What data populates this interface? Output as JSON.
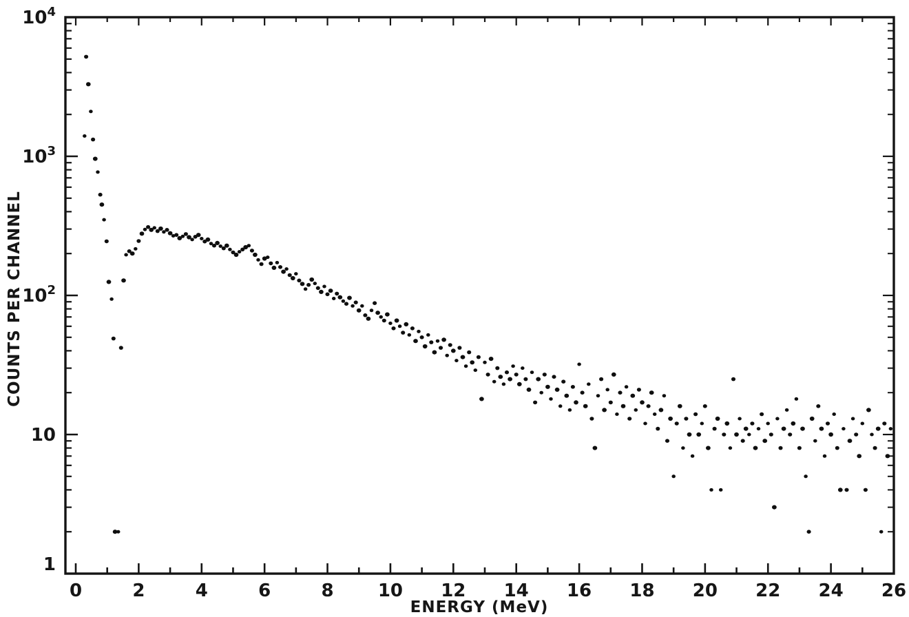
{
  "figure": {
    "background": "#ffffff",
    "ink": "#141414",
    "dot_color": "#0f0f0f"
  },
  "chart_data": {
    "type": "scatter",
    "title": "",
    "xlabel": "ENERGY (MeV)",
    "ylabel": "COUNTS PER CHANNEL",
    "legend": null,
    "grid": false,
    "marker": "dot",
    "x_axis": {
      "min": 0,
      "max": 26,
      "tick_values": [
        0,
        1,
        2,
        3,
        4,
        5,
        6,
        7,
        8,
        9,
        10,
        11,
        12,
        13,
        14,
        15,
        16,
        17,
        18,
        19,
        20,
        21,
        22,
        23,
        24,
        25,
        26
      ],
      "label_values": [
        0,
        2,
        4,
        6,
        8,
        10,
        12,
        14,
        16,
        18,
        20,
        22,
        24,
        26
      ]
    },
    "y_axis": {
      "scale": "log",
      "min": 1,
      "max": 10000,
      "decades": [
        {
          "value": 1,
          "base": "1",
          "exp": ""
        },
        {
          "value": 10,
          "base": "10",
          "exp": ""
        },
        {
          "value": 100,
          "base": "10",
          "exp": "2"
        },
        {
          "value": 1000,
          "base": "10",
          "exp": "3"
        },
        {
          "value": 10000,
          "base": "10",
          "exp": "4"
        }
      ],
      "minor_multiples": [
        2,
        3,
        4,
        5,
        6,
        7,
        8,
        9
      ]
    },
    "points": [
      [
        0.28,
        1400
      ],
      [
        0.33,
        5200
      ],
      [
        0.4,
        3300
      ],
      [
        0.48,
        2100
      ],
      [
        0.55,
        1320
      ],
      [
        0.62,
        960
      ],
      [
        0.7,
        770
      ],
      [
        0.78,
        530
      ],
      [
        0.83,
        450
      ],
      [
        0.9,
        350
      ],
      [
        0.98,
        245
      ],
      [
        1.05,
        125
      ],
      [
        1.14,
        94
      ],
      [
        1.2,
        49
      ],
      [
        1.25,
        2
      ],
      [
        1.35,
        2
      ],
      [
        1.44,
        42
      ],
      [
        1.52,
        128
      ],
      [
        1.6,
        196
      ],
      [
        1.7,
        208
      ],
      [
        1.8,
        200
      ],
      [
        1.9,
        216
      ],
      [
        2.0,
        246
      ],
      [
        2.1,
        278
      ],
      [
        2.2,
        298
      ],
      [
        2.3,
        310
      ],
      [
        2.4,
        296
      ],
      [
        2.5,
        306
      ],
      [
        2.6,
        290
      ],
      [
        2.7,
        302
      ],
      [
        2.8,
        286
      ],
      [
        2.9,
        296
      ],
      [
        3.0,
        280
      ],
      [
        3.1,
        268
      ],
      [
        3.2,
        272
      ],
      [
        3.3,
        258
      ],
      [
        3.4,
        266
      ],
      [
        3.5,
        276
      ],
      [
        3.6,
        262
      ],
      [
        3.7,
        252
      ],
      [
        3.8,
        264
      ],
      [
        3.9,
        272
      ],
      [
        4.0,
        256
      ],
      [
        4.1,
        244
      ],
      [
        4.2,
        252
      ],
      [
        4.3,
        236
      ],
      [
        4.4,
        228
      ],
      [
        4.5,
        238
      ],
      [
        4.6,
        226
      ],
      [
        4.7,
        218
      ],
      [
        4.8,
        228
      ],
      [
        4.9,
        214
      ],
      [
        5.0,
        204
      ],
      [
        5.1,
        196
      ],
      [
        5.2,
        206
      ],
      [
        5.3,
        214
      ],
      [
        5.4,
        222
      ],
      [
        5.5,
        228
      ],
      [
        5.6,
        210
      ],
      [
        5.7,
        196
      ],
      [
        5.8,
        180
      ],
      [
        5.9,
        168
      ],
      [
        6.0,
        184
      ],
      [
        6.1,
        188
      ],
      [
        6.2,
        170
      ],
      [
        6.3,
        158
      ],
      [
        6.4,
        172
      ],
      [
        6.5,
        160
      ],
      [
        6.6,
        148
      ],
      [
        6.7,
        155
      ],
      [
        6.8,
        140
      ],
      [
        6.9,
        133
      ],
      [
        7.0,
        143
      ],
      [
        7.1,
        128
      ],
      [
        7.2,
        121
      ],
      [
        7.3,
        111
      ],
      [
        7.4,
        119
      ],
      [
        7.5,
        130
      ],
      [
        7.6,
        122
      ],
      [
        7.7,
        113
      ],
      [
        7.8,
        106
      ],
      [
        7.9,
        116
      ],
      [
        8.0,
        102
      ],
      [
        8.1,
        108
      ],
      [
        8.2,
        95
      ],
      [
        8.3,
        103
      ],
      [
        8.4,
        97
      ],
      [
        8.5,
        91
      ],
      [
        8.6,
        87
      ],
      [
        8.7,
        96
      ],
      [
        8.8,
        84
      ],
      [
        8.9,
        89
      ],
      [
        9.0,
        78
      ],
      [
        9.1,
        84
      ],
      [
        9.2,
        72
      ],
      [
        9.3,
        68
      ],
      [
        9.4,
        78
      ],
      [
        9.5,
        88
      ],
      [
        9.6,
        75
      ],
      [
        9.7,
        70
      ],
      [
        9.8,
        66
      ],
      [
        9.9,
        73
      ],
      [
        10.0,
        63
      ],
      [
        10.1,
        58
      ],
      [
        10.2,
        66
      ],
      [
        10.3,
        60
      ],
      [
        10.4,
        54
      ],
      [
        10.5,
        62
      ],
      [
        10.6,
        52
      ],
      [
        10.7,
        58
      ],
      [
        10.8,
        47
      ],
      [
        10.9,
        55
      ],
      [
        11.0,
        50
      ],
      [
        11.1,
        43
      ],
      [
        11.2,
        52
      ],
      [
        11.3,
        46
      ],
      [
        11.4,
        39
      ],
      [
        11.5,
        47
      ],
      [
        11.6,
        42
      ],
      [
        11.7,
        48
      ],
      [
        11.8,
        37
      ],
      [
        11.9,
        44
      ],
      [
        12.0,
        40
      ],
      [
        12.1,
        34
      ],
      [
        12.2,
        42
      ],
      [
        12.3,
        36
      ],
      [
        12.4,
        31
      ],
      [
        12.5,
        39
      ],
      [
        12.6,
        33
      ],
      [
        12.7,
        29
      ],
      [
        12.8,
        36
      ],
      [
        12.9,
        18
      ],
      [
        13.0,
        33
      ],
      [
        13.1,
        27
      ],
      [
        13.2,
        35
      ],
      [
        13.3,
        24
      ],
      [
        13.4,
        30
      ],
      [
        13.5,
        26
      ],
      [
        13.6,
        23
      ],
      [
        13.7,
        28
      ],
      [
        13.8,
        25
      ],
      [
        13.9,
        31
      ],
      [
        14.0,
        27
      ],
      [
        14.1,
        23
      ],
      [
        14.2,
        30
      ],
      [
        14.3,
        25
      ],
      [
        14.4,
        21
      ],
      [
        14.5,
        28
      ],
      [
        14.6,
        17
      ],
      [
        14.7,
        25
      ],
      [
        14.8,
        20
      ],
      [
        14.9,
        27
      ],
      [
        15.0,
        22
      ],
      [
        15.1,
        18
      ],
      [
        15.2,
        26
      ],
      [
        15.3,
        21
      ],
      [
        15.4,
        16
      ],
      [
        15.5,
        24
      ],
      [
        15.6,
        19
      ],
      [
        15.7,
        15
      ],
      [
        15.8,
        22
      ],
      [
        15.9,
        17
      ],
      [
        16.0,
        32
      ],
      [
        16.1,
        20
      ],
      [
        16.2,
        16
      ],
      [
        16.3,
        23
      ],
      [
        16.4,
        13
      ],
      [
        16.5,
        8
      ],
      [
        16.6,
        19
      ],
      [
        16.7,
        25
      ],
      [
        16.8,
        15
      ],
      [
        16.9,
        21
      ],
      [
        17.0,
        17
      ],
      [
        17.1,
        27
      ],
      [
        17.2,
        14
      ],
      [
        17.3,
        20
      ],
      [
        17.4,
        16
      ],
      [
        17.5,
        22
      ],
      [
        17.6,
        13
      ],
      [
        17.7,
        19
      ],
      [
        17.8,
        15
      ],
      [
        17.9,
        21
      ],
      [
        18.0,
        17
      ],
      [
        18.1,
        12
      ],
      [
        18.2,
        16
      ],
      [
        18.3,
        20
      ],
      [
        18.4,
        14
      ],
      [
        18.5,
        11
      ],
      [
        18.6,
        15
      ],
      [
        18.7,
        19
      ],
      [
        18.8,
        9
      ],
      [
        18.9,
        13
      ],
      [
        19.0,
        5
      ],
      [
        19.1,
        12
      ],
      [
        19.2,
        16
      ],
      [
        19.3,
        8
      ],
      [
        19.4,
        13
      ],
      [
        19.5,
        10
      ],
      [
        19.6,
        7
      ],
      [
        19.7,
        14
      ],
      [
        19.8,
        10
      ],
      [
        19.9,
        12
      ],
      [
        20.0,
        16
      ],
      [
        20.1,
        8
      ],
      [
        20.2,
        4
      ],
      [
        20.3,
        11
      ],
      [
        20.4,
        13
      ],
      [
        20.5,
        4
      ],
      [
        20.6,
        10
      ],
      [
        20.7,
        12
      ],
      [
        20.8,
        8
      ],
      [
        20.9,
        25
      ],
      [
        21.0,
        10
      ],
      [
        21.1,
        13
      ],
      [
        21.2,
        9
      ],
      [
        21.3,
        11
      ],
      [
        21.4,
        10
      ],
      [
        21.5,
        12
      ],
      [
        21.6,
        8
      ],
      [
        21.7,
        11
      ],
      [
        21.8,
        14
      ],
      [
        21.9,
        9
      ],
      [
        22.0,
        12
      ],
      [
        22.1,
        10
      ],
      [
        22.2,
        3
      ],
      [
        22.3,
        13
      ],
      [
        22.4,
        8
      ],
      [
        22.5,
        11
      ],
      [
        22.6,
        15
      ],
      [
        22.7,
        10
      ],
      [
        22.8,
        12
      ],
      [
        22.9,
        18
      ],
      [
        23.0,
        8
      ],
      [
        23.1,
        11
      ],
      [
        23.2,
        5
      ],
      [
        23.3,
        2
      ],
      [
        23.4,
        13
      ],
      [
        23.5,
        9
      ],
      [
        23.6,
        16
      ],
      [
        23.7,
        11
      ],
      [
        23.8,
        7
      ],
      [
        23.9,
        12
      ],
      [
        24.0,
        10
      ],
      [
        24.1,
        14
      ],
      [
        24.2,
        8
      ],
      [
        24.3,
        4
      ],
      [
        24.4,
        11
      ],
      [
        24.5,
        4
      ],
      [
        24.6,
        9
      ],
      [
        24.7,
        13
      ],
      [
        24.8,
        10
      ],
      [
        24.9,
        7
      ],
      [
        25.0,
        12
      ],
      [
        25.1,
        4
      ],
      [
        25.2,
        15
      ],
      [
        25.3,
        10
      ],
      [
        25.4,
        8
      ],
      [
        25.5,
        11
      ],
      [
        25.6,
        2
      ],
      [
        25.7,
        12
      ],
      [
        25.8,
        7
      ],
      [
        25.9,
        11
      ]
    ]
  }
}
